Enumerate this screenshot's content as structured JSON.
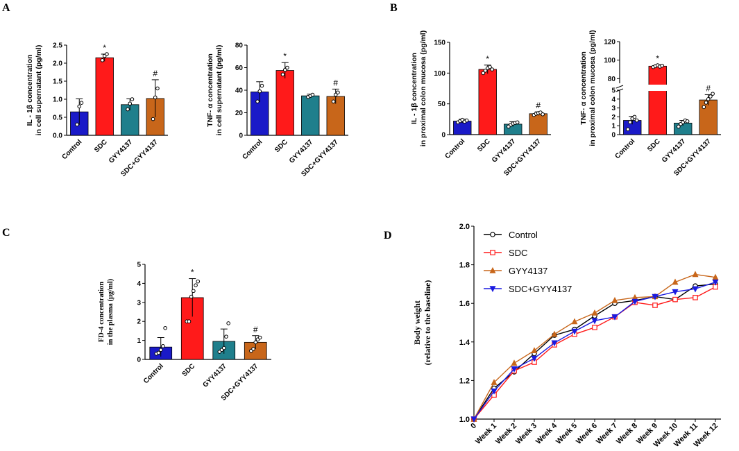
{
  "panel_labels": [
    "A",
    "B",
    "C",
    "D"
  ],
  "colors": {
    "Control": "#1a1ac8",
    "SDC": "#ff1a1a",
    "GYY4137": "#1f7f8c",
    "SDC+GYY4137": "#c8661a",
    "axis": "#000000"
  },
  "chart_data": [
    {
      "id": "A1",
      "type": "bar",
      "panel": "A",
      "categories": [
        "Control",
        "SDC",
        "GYY4137",
        "SDC+GYY4137"
      ],
      "values": [
        0.65,
        2.15,
        0.85,
        1.02
      ],
      "errors": [
        0.36,
        0.1,
        0.16,
        0.52
      ],
      "points": [
        [
          0.3,
          0.8,
          0.9
        ],
        [
          2.08,
          2.2,
          2.25
        ],
        [
          0.72,
          0.88,
          1.0
        ],
        [
          0.45,
          1.05,
          1.3
        ]
      ],
      "sig": [
        "",
        "*",
        "",
        "#"
      ],
      "ylabel_lines": [
        "IL - 1β concentration",
        "in cell supernatant (pg/ml)"
      ],
      "ylim": [
        0,
        2.5
      ],
      "yticks": [
        "0.0",
        "0.5",
        "1.0",
        "1.5",
        "2.0",
        "2.5"
      ]
    },
    {
      "id": "A2",
      "type": "bar",
      "panel": "A",
      "categories": [
        "Control",
        "SDC",
        "GYY4137",
        "SDC+GYY4137"
      ],
      "values": [
        38.5,
        57.5,
        35.0,
        34.5
      ],
      "errors": [
        9.0,
        7.0,
        1.5,
        6.5
      ],
      "points": [
        [
          30,
          39,
          44
        ],
        [
          54,
          58,
          60
        ],
        [
          34,
          35,
          36
        ],
        [
          30,
          36,
          38
        ]
      ],
      "sig": [
        "",
        "*",
        "",
        "#"
      ],
      "ylabel_lines": [
        "TNF- α concentration",
        "in cell supernatant (pg/ml)"
      ],
      "ylim": [
        0,
        80
      ],
      "yticks": [
        "0",
        "20",
        "40",
        "60",
        "80"
      ]
    },
    {
      "id": "B1",
      "type": "bar",
      "panel": "B",
      "categories": [
        "Control",
        "SDC",
        "GYY4137",
        "SDC+GYY4137"
      ],
      "values": [
        22,
        106,
        17,
        34
      ],
      "errors": [
        3,
        7,
        4,
        3
      ],
      "points": [
        [
          20,
          22,
          24,
          21,
          23
        ],
        [
          100,
          104,
          108,
          110,
          106
        ],
        [
          13,
          16,
          18,
          19,
          20
        ],
        [
          32,
          34,
          35,
          36,
          33
        ]
      ],
      "sig": [
        "",
        "*",
        "",
        "#"
      ],
      "ylabel_lines": [
        "IL - 1β concentration",
        "in proximal colon mucosa (pg/ml)"
      ],
      "ylim": [
        0,
        150
      ],
      "yticks": [
        "0",
        "50",
        "100",
        "150"
      ]
    },
    {
      "id": "B2",
      "type": "bar",
      "panel": "B",
      "broken_axis": true,
      "categories": [
        "Control",
        "SDC",
        "GYY4137",
        "SDC+GYY4137"
      ],
      "values": [
        1.6,
        93.5,
        1.3,
        3.9
      ],
      "errors": [
        0.45,
        1.5,
        0.3,
        0.6
      ],
      "points": [
        [
          0.6,
          1.4,
          1.8,
          2.0,
          1.6
        ],
        [
          92.5,
          93.5,
          94.5,
          93,
          94
        ],
        [
          0.9,
          1.2,
          1.4,
          1.6,
          1.5
        ],
        [
          3.1,
          3.6,
          4.0,
          4.3,
          4.6
        ]
      ],
      "sig": [
        "",
        "*",
        "",
        "#"
      ],
      "ylabel_lines": [
        "TNF- α concentration",
        "in proximal colon mucosa (pg/ml)"
      ],
      "ylim_lower": [
        0,
        5
      ],
      "ylim_upper": [
        75,
        120
      ],
      "yticks_lower": [
        "0",
        "1",
        "2",
        "3",
        "4",
        "5"
      ],
      "yticks_upper": [
        "80",
        "100",
        "120"
      ]
    },
    {
      "id": "C",
      "type": "bar",
      "panel": "C",
      "categories": [
        "Control",
        "SDC",
        "GYY4137",
        "SDC+GYY4137"
      ],
      "values": [
        0.65,
        3.25,
        0.95,
        0.9
      ],
      "errors": [
        0.5,
        1.0,
        0.65,
        0.35
      ],
      "points": [
        [
          0.3,
          0.35,
          0.5,
          0.7,
          1.65
        ],
        [
          2.0,
          2.0,
          3.3,
          3.6,
          3.9,
          4.1
        ],
        [
          0.4,
          0.5,
          0.6,
          1.2,
          1.9
        ],
        [
          0.45,
          0.55,
          0.9,
          1.05,
          1.15
        ]
      ],
      "sig": [
        "",
        "*",
        "",
        "#"
      ],
      "ylabel_lines": [
        "FD-4 concentration",
        "in the plasma (μg/ml)"
      ],
      "ylim": [
        0,
        5
      ],
      "yticks": [
        "0",
        "1",
        "2",
        "3",
        "4",
        "5"
      ]
    },
    {
      "id": "D",
      "type": "line",
      "panel": "D",
      "x": [
        "0",
        "Week 1",
        "Week 2",
        "Week 3",
        "Week 4",
        "Week 5",
        "Week 6",
        "Week 7",
        "Week 8",
        "Week 9",
        "Week 10",
        "Week 11",
        "Week 12"
      ],
      "series": [
        {
          "name": "Control",
          "marker": "circle",
          "color": "#000000",
          "values": [
            1.0,
            1.16,
            1.245,
            1.34,
            1.435,
            1.465,
            1.535,
            1.6,
            1.615,
            1.635,
            1.62,
            1.69,
            1.7
          ]
        },
        {
          "name": "SDC",
          "marker": "square",
          "color": "#ff1a1a",
          "values": [
            1.0,
            1.125,
            1.25,
            1.295,
            1.385,
            1.44,
            1.475,
            1.53,
            1.605,
            1.59,
            1.62,
            1.63,
            1.685
          ]
        },
        {
          "name": "GYY4137",
          "marker": "triangle",
          "color": "#c8661a",
          "values": [
            1.0,
            1.19,
            1.29,
            1.355,
            1.44,
            1.505,
            1.55,
            1.615,
            1.63,
            1.635,
            1.71,
            1.75,
            1.735
          ]
        },
        {
          "name": "SDC+GYY4137",
          "marker": "triangle-down",
          "color": "#1a1ae0",
          "values": [
            1.0,
            1.145,
            1.26,
            1.315,
            1.395,
            1.455,
            1.51,
            1.53,
            1.61,
            1.635,
            1.66,
            1.675,
            1.71
          ]
        }
      ],
      "ylabel_lines": [
        "Body weight",
        "(relative to the baseline)"
      ],
      "ylim": [
        1.0,
        2.0
      ],
      "yticks": [
        "1.0",
        "1.2",
        "1.4",
        "1.6",
        "1.8",
        "2.0"
      ],
      "legend": "top-left"
    }
  ]
}
